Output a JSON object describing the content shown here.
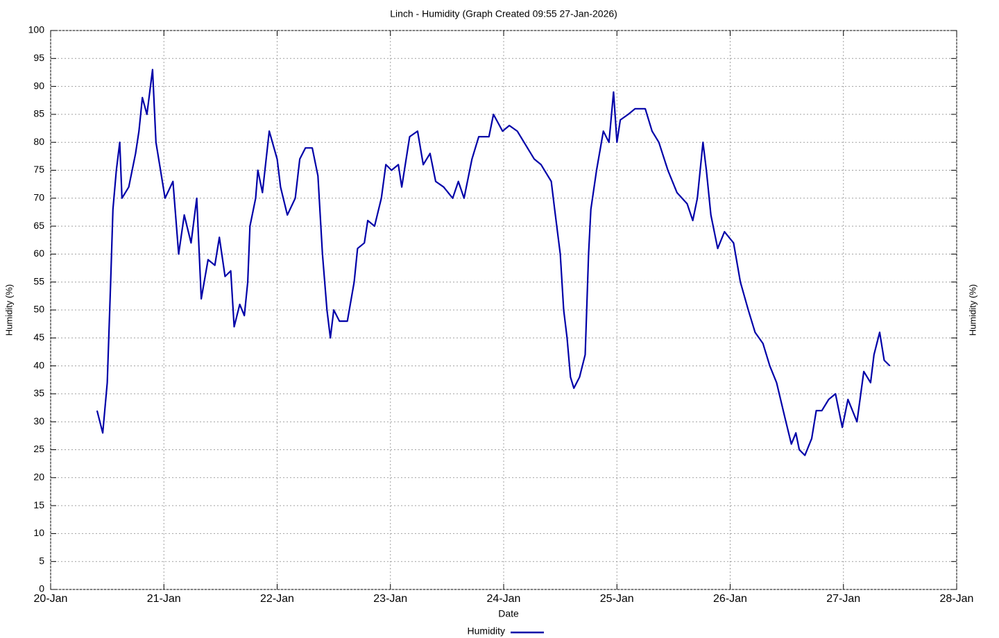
{
  "chart_data": {
    "type": "line",
    "title": "Linch - Humidity (Graph Created 09:55 27-Jan-2026)",
    "x_label": "Date",
    "y_label": "Humidity (%)",
    "xlim": [
      20,
      28
    ],
    "xticks": [
      {
        "value": 20,
        "label": "20-Jan"
      },
      {
        "value": 21,
        "label": "21-Jan"
      },
      {
        "value": 22,
        "label": "22-Jan"
      },
      {
        "value": 23,
        "label": "23-Jan"
      },
      {
        "value": 24,
        "label": "24-Jan"
      },
      {
        "value": 25,
        "label": "25-Jan"
      },
      {
        "value": 26,
        "label": "26-Jan"
      },
      {
        "value": 27,
        "label": "27-Jan"
      },
      {
        "value": 28,
        "label": "28-Jan"
      }
    ],
    "ylim": [
      0,
      100
    ],
    "yticks": [
      0,
      5,
      10,
      15,
      20,
      25,
      30,
      35,
      40,
      45,
      50,
      55,
      60,
      65,
      70,
      75,
      80,
      85,
      90,
      95,
      100
    ],
    "grid": true,
    "legend": "bottom",
    "x": [
      20.41,
      20.46,
      20.5,
      20.53,
      20.55,
      20.58,
      20.61,
      20.63,
      20.69,
      20.75,
      20.78,
      20.81,
      20.85,
      20.9,
      20.93,
      20.97,
      21.01,
      21.08,
      21.13,
      21.18,
      21.24,
      21.29,
      21.33,
      21.39,
      21.45,
      21.49,
      21.54,
      21.59,
      21.62,
      21.67,
      21.71,
      21.74,
      21.76,
      21.81,
      21.83,
      21.87,
      21.93,
      22.0,
      22.03,
      22.09,
      22.16,
      22.2,
      22.25,
      22.31,
      22.36,
      22.4,
      22.44,
      22.47,
      22.5,
      22.55,
      22.62,
      22.68,
      22.71,
      22.77,
      22.8,
      22.86,
      22.92,
      22.96,
      23.01,
      23.07,
      23.1,
      23.17,
      23.24,
      23.29,
      23.35,
      23.4,
      23.47,
      23.55,
      23.6,
      23.65,
      23.72,
      23.78,
      23.87,
      23.91,
      23.99,
      24.05,
      24.12,
      24.18,
      24.27,
      24.33,
      24.42,
      24.45,
      24.5,
      24.53,
      24.56,
      24.59,
      24.62,
      24.67,
      24.72,
      24.75,
      24.77,
      24.82,
      24.88,
      24.93,
      24.97,
      25.0,
      25.03,
      25.1,
      25.16,
      25.25,
      25.31,
      25.37,
      25.45,
      25.53,
      25.62,
      25.67,
      25.71,
      25.76,
      25.79,
      25.83,
      25.89,
      25.95,
      26.03,
      26.09,
      26.16,
      26.22,
      26.29,
      26.35,
      26.41,
      26.48,
      26.54,
      26.58,
      26.61,
      26.66,
      26.72,
      26.76,
      26.81,
      26.87,
      26.93,
      26.99,
      27.04,
      27.12,
      27.18,
      27.24,
      27.27,
      27.32,
      27.36,
      27.41
    ],
    "series": [
      {
        "name": "Humidity",
        "color": "#0000a8",
        "values": [
          32,
          28,
          37,
          55,
          68,
          75,
          80,
          70,
          72,
          78,
          82,
          88,
          85,
          93,
          80,
          75,
          70,
          73,
          60,
          67,
          62,
          70,
          52,
          59,
          58,
          63,
          56,
          57,
          47,
          51,
          49,
          55,
          65,
          70,
          75,
          71,
          82,
          77,
          72,
          67,
          70,
          77,
          79,
          79,
          74,
          60,
          50,
          45,
          50,
          48,
          48,
          55,
          61,
          62,
          66,
          65,
          70,
          76,
          75,
          76,
          72,
          81,
          82,
          76,
          78,
          73,
          72,
          70,
          73,
          70,
          77,
          81,
          81,
          85,
          82,
          83,
          82,
          80,
          77,
          76,
          73,
          68,
          60,
          50,
          45,
          38,
          36,
          38,
          42,
          60,
          68,
          75,
          82,
          80,
          89,
          80,
          84,
          85,
          86,
          86,
          82,
          80,
          75,
          71,
          69,
          66,
          70,
          80,
          75,
          67,
          61,
          64,
          62,
          55,
          50,
          46,
          44,
          40,
          37,
          31,
          26,
          28,
          25,
          24,
          27,
          32,
          32,
          34,
          35,
          29,
          34,
          30,
          39,
          37,
          42,
          46,
          41,
          40
        ]
      }
    ]
  }
}
